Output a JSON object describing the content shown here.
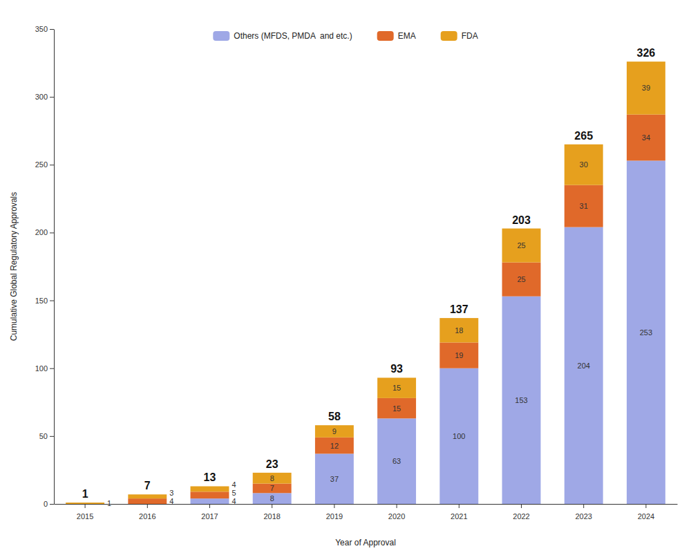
{
  "chart_data": {
    "type": "bar",
    "stacked": true,
    "data_labels": true,
    "legend": "top",
    "grid": false,
    "x_label": "Year of Approval",
    "y_label": "Cumulative Global Regulatory Approvals",
    "categories": [
      "2015",
      "2016",
      "2017",
      "2018",
      "2019",
      "2020",
      "2021",
      "2022",
      "2023",
      "2024"
    ],
    "series": [
      {
        "name": "Others (MFDS, PMDA  and etc.)",
        "color": "#9fa8e6",
        "values": [
          null,
          null,
          4,
          8,
          37,
          63,
          100,
          153,
          204,
          253
        ]
      },
      {
        "name": "EMA",
        "color": "#e0692a",
        "values": [
          null,
          4,
          5,
          7,
          12,
          15,
          19,
          25,
          31,
          34
        ]
      },
      {
        "name": "FDA",
        "color": "#e6a01e",
        "values": [
          1,
          3,
          4,
          8,
          9,
          15,
          18,
          25,
          30,
          39
        ]
      }
    ],
    "totals": [
      1,
      7,
      13,
      23,
      58,
      93,
      137,
      203,
      265,
      326
    ],
    "ylim": [
      0,
      350
    ],
    "yticks": [
      0,
      50,
      100,
      150,
      200,
      250,
      300,
      350
    ]
  }
}
